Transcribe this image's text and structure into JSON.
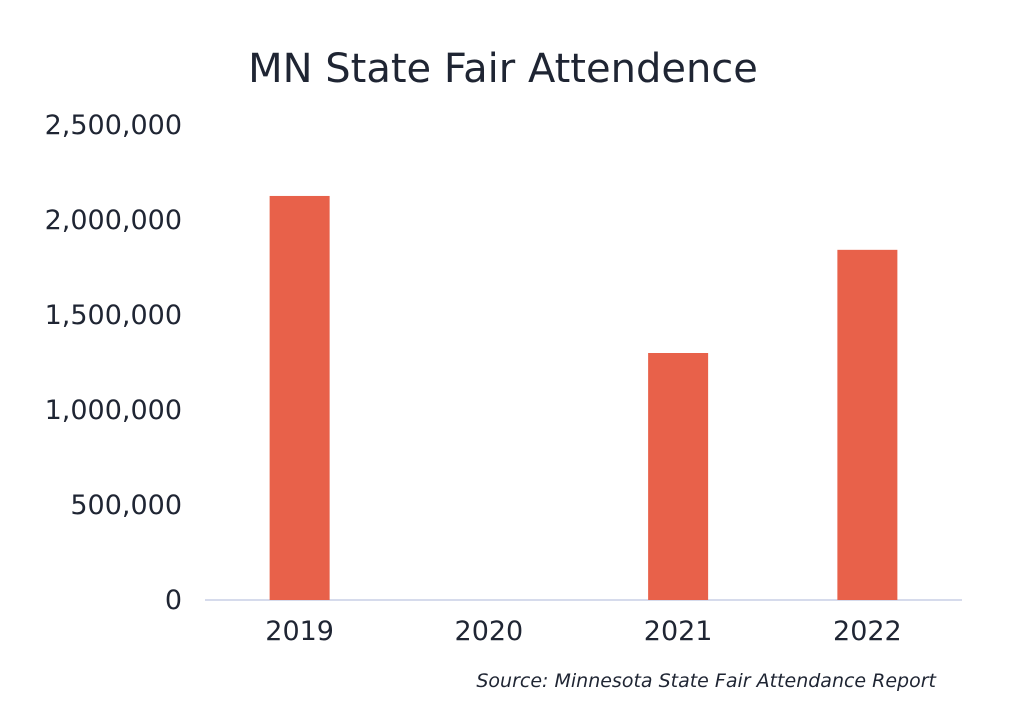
{
  "chart_data": {
    "type": "bar",
    "title": "MN State Fair Attendence",
    "categories": [
      "2019",
      "2020",
      "2021",
      "2022"
    ],
    "values": [
      2126551,
      0,
      1300000,
      1843000
    ],
    "ylim": [
      0,
      2500000
    ],
    "yticks": [
      "0",
      "500,000",
      "1,000,000",
      "1,500,000",
      "2,000,000",
      "2,500,000"
    ],
    "ytick_values": [
      0,
      500000,
      1000000,
      1500000,
      2000000,
      2500000
    ],
    "xlabel": "",
    "ylabel": "",
    "grid": false,
    "legend": "none",
    "bar_color": "#e8614a",
    "source": "Source: Minnesota State Fair Attendance Report"
  }
}
